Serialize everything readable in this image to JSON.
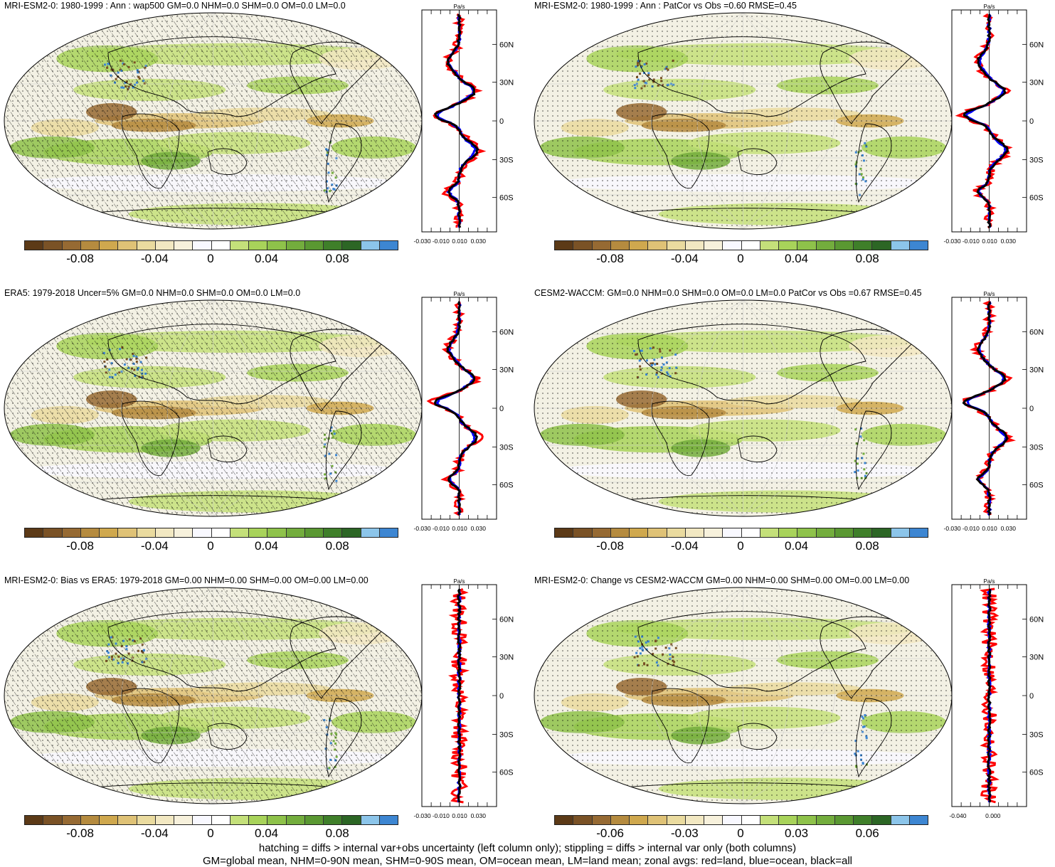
{
  "colors": {
    "palette": [
      "#5c3a17",
      "#7a5226",
      "#966a33",
      "#b58b3f",
      "#cfa84e",
      "#dfc276",
      "#eadb9f",
      "#f2e8c2",
      "#f7f1dc",
      "#f8f8ff",
      "#ffffff",
      "#c4e07a",
      "#a8d35a",
      "#8ec24a",
      "#73ad3d",
      "#5a9832",
      "#3f7f2a",
      "#2c6625",
      "#8cc5ea",
      "#3d86d2"
    ],
    "land": "red",
    "ocean": "blue",
    "all": "black"
  },
  "panels": [
    {
      "title": "MRI-ESM2-0: 1980-1999 : Ann : wap500 GM=0.0 NHM=0.0 SHM=0.0 OM=0.0 LM=0.0",
      "hatched": true,
      "profile": {
        "units": "Pa/s",
        "yticks": [
          "60N",
          "30N",
          "0",
          "30S",
          "60S"
        ],
        "xticks": [
          "-0.030",
          "-0.010",
          "0.010",
          "0.030"
        ]
      },
      "colorbar": {
        "labels": [
          "-0.08",
          "-0.04",
          "0",
          "0.04",
          "0.08"
        ]
      }
    },
    {
      "title": "MRI-ESM2-0: 1980-1999 : Ann : PatCor vs Obs =0.60 RMSE=0.45",
      "hatched": false,
      "profile": {
        "units": "Pa/s",
        "yticks": [
          "60N",
          "30N",
          "0",
          "30S",
          "60S"
        ],
        "xticks": [
          "-0.030",
          "-0.010",
          "0.010",
          "0.030"
        ]
      },
      "colorbar": {
        "labels": [
          "-0.08",
          "-0.04",
          "0",
          "0.04",
          "0.08"
        ]
      }
    },
    {
      "title": "ERA5: 1979-2018 Uncer=5% GM=0.0 NHM=0.0 SHM=0.0 OM=0.0 LM=0.0",
      "hatched": true,
      "profile": {
        "units": "Pa/s",
        "yticks": [
          "60N",
          "30N",
          "0",
          "30S",
          "60S"
        ],
        "xticks": [
          "-0.030",
          "-0.010",
          "0.010",
          "0.030"
        ]
      },
      "colorbar": {
        "labels": [
          "-0.08",
          "-0.04",
          "0",
          "0.04",
          "0.08"
        ]
      }
    },
    {
      "title": "CESM2-WACCM: GM=0.0 NHM=0.0 SHM=0.0 OM=0.0 LM=0.0 PatCor vs Obs =0.67 RMSE=0.45",
      "hatched": false,
      "profile": {
        "units": "Pa/s",
        "yticks": [
          "60N",
          "30N",
          "0",
          "30S",
          "60S"
        ],
        "xticks": [
          "-0.030",
          "-0.010",
          "0.010",
          "0.030"
        ]
      },
      "colorbar": {
        "labels": [
          "-0.08",
          "-0.04",
          "0",
          "0.04",
          "0.08"
        ]
      }
    },
    {
      "title": "MRI-ESM2-0: Bias vs ERA5: 1979-2018 GM=0.00 NHM=0.00 SHM=0.00 OM=0.00 LM=0.00",
      "hatched": true,
      "profile": {
        "units": "Pa/s",
        "yticks": [
          "60N",
          "30N",
          "0",
          "30S",
          "60S"
        ],
        "xticks": [
          "-0.030",
          "-0.010",
          "0.010",
          "0.030"
        ]
      },
      "colorbar": {
        "labels": [
          "-0.08",
          "-0.04",
          "0",
          "0.04",
          "0.08"
        ]
      }
    },
    {
      "title": "MRI-ESM2-0: Change vs CESM2-WACCM GM=0.00 NHM=0.00 SHM=0.00 OM=0.00 LM=0.00",
      "hatched": false,
      "profile": {
        "units": "Pa/s",
        "yticks": [
          "60N",
          "30N",
          "0",
          "30S",
          "60S"
        ],
        "xticks": [
          "-0.040",
          "0.000"
        ]
      },
      "colorbar": {
        "labels": [
          "-0.06",
          "-0.03",
          "0",
          "0.03",
          "0.06"
        ]
      }
    }
  ],
  "caption": {
    "line1": "hatching = diffs > internal var+obs uncertainty (left column only); stippling = diffs > internal var only (both columns)",
    "line2": "GM=global mean, NHM=0-90N mean, SHM=0-90S mean, OM=ocean mean, LM=land mean; zonal avgs: red=land, blue=ocean, black=all"
  }
}
